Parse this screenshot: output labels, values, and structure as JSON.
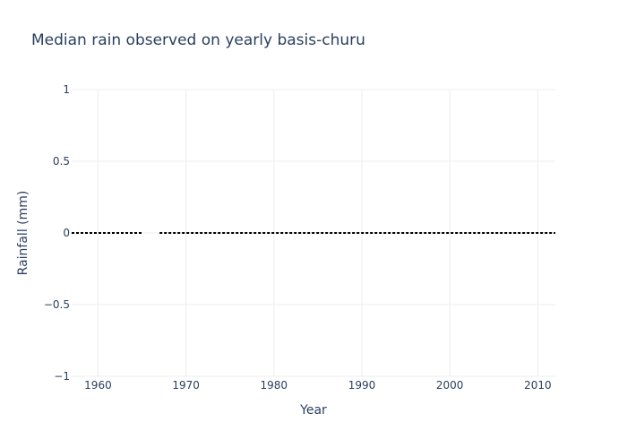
{
  "chart_data": {
    "type": "line",
    "title": "Median rain observed on yearly basis-churu",
    "xlabel": "Year",
    "ylabel": "Rainfall (mm)",
    "xlim": [
      1957,
      2012
    ],
    "ylim": [
      -1,
      1
    ],
    "x_ticks": [
      1960,
      1970,
      1980,
      1990,
      2000,
      2010
    ],
    "x_tick_labels": [
      "1960",
      "1970",
      "1980",
      "1990",
      "2000",
      "2010"
    ],
    "y_ticks": [
      1,
      0.5,
      0,
      -0.5,
      -1
    ],
    "y_tick_labels": [
      "1",
      "0.5",
      "0",
      "−0.5",
      "−1"
    ],
    "grid": true,
    "legend": false,
    "series": [
      {
        "color": "#000000",
        "line_style": "dotted",
        "x": [
          1957,
          1958,
          1959,
          1960,
          1961,
          1962,
          1963,
          1964,
          1965,
          1966,
          1967,
          1968,
          1969,
          1970,
          1971,
          1972,
          1973,
          1974,
          1975,
          1976,
          1977,
          1978,
          1979,
          1980,
          1981,
          1982,
          1983,
          1984,
          1985,
          1986,
          1987,
          1988,
          1989,
          1990,
          1991,
          1992,
          1993,
          1994,
          1995,
          1996,
          1997,
          1998,
          1999,
          2000,
          2001,
          2002,
          2003,
          2004,
          2005,
          2006,
          2007,
          2008,
          2009,
          2010,
          2011,
          2012
        ],
        "y": [
          0,
          0,
          0,
          0,
          0,
          0,
          0,
          0,
          0,
          null,
          0,
          0,
          0,
          0,
          0,
          0,
          0,
          0,
          0,
          0,
          0,
          0,
          0,
          0,
          0,
          0,
          0,
          0,
          0,
          0,
          0,
          0,
          0,
          0,
          0,
          0,
          0,
          0,
          0,
          0,
          0,
          0,
          0,
          0,
          0,
          0,
          0,
          0,
          0,
          0,
          0,
          0,
          0,
          0,
          0,
          0
        ]
      }
    ]
  }
}
